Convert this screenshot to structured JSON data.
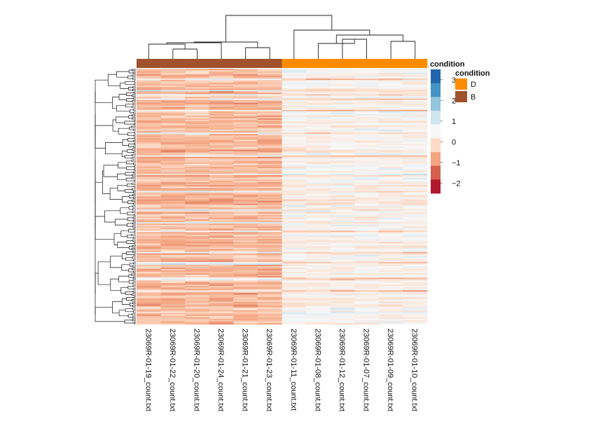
{
  "chart_data": {
    "type": "heatmap",
    "title": "",
    "columns": [
      {
        "label": "23069R-01-19_count.txt",
        "condition": "B"
      },
      {
        "label": "23069R-01-22_count.txt",
        "condition": "B"
      },
      {
        "label": "23069R-01-20_count.txt",
        "condition": "B"
      },
      {
        "label": "23069R-01-24_count.txt",
        "condition": "B"
      },
      {
        "label": "23069R-01-21_count.txt",
        "condition": "B"
      },
      {
        "label": "23069R-01-23_count.txt",
        "condition": "B"
      },
      {
        "label": "23069R-01-11_count.txt",
        "condition": "D"
      },
      {
        "label": "23069R-01-08_count.txt",
        "condition": "D"
      },
      {
        "label": "23069R-01-12_count.txt",
        "condition": "D"
      },
      {
        "label": "23069R-01-07_count.txt",
        "condition": "D"
      },
      {
        "label": "23069R-01-09_count.txt",
        "condition": "D"
      },
      {
        "label": "23069R-01-10_count.txt",
        "condition": "D"
      }
    ],
    "annotation": {
      "title": "condition",
      "levels": [
        {
          "name": "D",
          "color": "#FF8C00"
        },
        {
          "name": "B",
          "color": "#A0522D"
        }
      ]
    },
    "color_scale": {
      "range": [
        -2.5,
        3.5
      ],
      "ticks": [
        3,
        2,
        1,
        0,
        -1,
        -2
      ],
      "tick_labels": [
        "3",
        "2",
        "1",
        "0",
        "−1",
        "−2"
      ],
      "colors": [
        "#2166AC",
        "#4393C3",
        "#92C5DE",
        "#D1E5F0",
        "#F7F7F7",
        "#FDDBC7",
        "#F4A582",
        "#D6604D",
        "#B2182B"
      ]
    },
    "row_pattern": [
      {
        "group": "B",
        "mean": -0.7
      },
      {
        "group": "D",
        "mean": 0.35
      }
    ],
    "n_rows": 180,
    "legend_position": "right"
  }
}
